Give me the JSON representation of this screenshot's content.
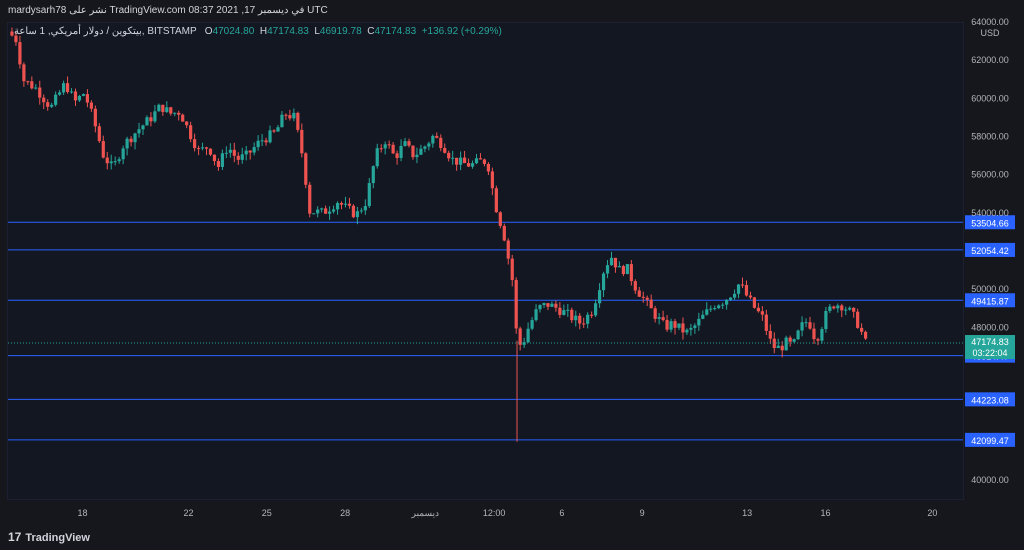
{
  "header": {
    "publish_line": "mardysarh78 نشر على TradingView.com في ديسمبر 17, 2021 08:37 UTC"
  },
  "legend": {
    "symbol": "بيتكوين / دولار أمريكي, 1 ساعة, BITSTAMP",
    "o_label": "O",
    "o_value": "47024.80",
    "h_label": "H",
    "h_value": "47174.83",
    "l_label": "L",
    "l_value": "46919.78",
    "c_label": "C",
    "c_value": "47174.83",
    "change": "+136.92 (+0.29%)"
  },
  "footer": {
    "brand": "TradingView",
    "brand_icon": "tradingview-logo-icon"
  },
  "colors": {
    "background": "#131722",
    "up": "#26a69a",
    "down": "#ef5350",
    "level_line": "#2962ff",
    "axis_text": "#b2b5be"
  },
  "chart_data": {
    "type": "candlestick",
    "title": "",
    "currency": "USD",
    "ylim": [
      39000,
      64000
    ],
    "y_ticks": [
      40000,
      48000,
      50000,
      54000,
      56000,
      58000,
      60000,
      62000,
      64000
    ],
    "y_tick_labels": [
      "40000.00",
      "48000.00",
      "50000.00",
      "54000.00",
      "56000.00",
      "58000.00",
      "60000.00",
      "62000.00",
      "64000.00"
    ],
    "x_ticks": [
      {
        "label": "18",
        "pos": 0.078
      },
      {
        "label": "22",
        "pos": 0.189
      },
      {
        "label": "25",
        "pos": 0.271
      },
      {
        "label": "28",
        "pos": 0.353
      },
      {
        "label": "ديسمبر",
        "pos": 0.437
      },
      {
        "label": "12:00",
        "pos": 0.509
      },
      {
        "label": "6",
        "pos": 0.58
      },
      {
        "label": "9",
        "pos": 0.664
      },
      {
        "label": "13",
        "pos": 0.774
      },
      {
        "label": "16",
        "pos": 0.856
      },
      {
        "label": "20",
        "pos": 0.968
      }
    ],
    "horizontal_levels": [
      53504.66,
      52054.42,
      49415.87,
      46514.47,
      44223.08,
      42099.47
    ],
    "last_price": 47174.83,
    "countdown": "03:22:04",
    "price_path": [
      [
        0.0,
        63500
      ],
      [
        0.01,
        63000
      ],
      [
        0.015,
        61000
      ],
      [
        0.03,
        60500
      ],
      [
        0.045,
        59500
      ],
      [
        0.06,
        60800
      ],
      [
        0.07,
        59800
      ],
      [
        0.08,
        60300
      ],
      [
        0.09,
        58800
      ],
      [
        0.1,
        57000
      ],
      [
        0.11,
        56300
      ],
      [
        0.12,
        57500
      ],
      [
        0.135,
        58300
      ],
      [
        0.15,
        59000
      ],
      [
        0.16,
        59600
      ],
      [
        0.17,
        59200
      ],
      [
        0.18,
        59300
      ],
      [
        0.19,
        58200
      ],
      [
        0.2,
        57200
      ],
      [
        0.21,
        57500
      ],
      [
        0.22,
        56400
      ],
      [
        0.23,
        57500
      ],
      [
        0.24,
        56800
      ],
      [
        0.25,
        57000
      ],
      [
        0.265,
        57800
      ],
      [
        0.28,
        58200
      ],
      [
        0.29,
        59200
      ],
      [
        0.3,
        59000
      ],
      [
        0.31,
        56600
      ],
      [
        0.315,
        54100
      ],
      [
        0.33,
        54000
      ],
      [
        0.345,
        54600
      ],
      [
        0.355,
        54200
      ],
      [
        0.365,
        53900
      ],
      [
        0.375,
        54600
      ],
      [
        0.385,
        57000
      ],
      [
        0.395,
        57800
      ],
      [
        0.405,
        56900
      ],
      [
        0.415,
        57600
      ],
      [
        0.425,
        57000
      ],
      [
        0.435,
        57400
      ],
      [
        0.445,
        58000
      ],
      [
        0.455,
        57600
      ],
      [
        0.465,
        56800
      ],
      [
        0.475,
        56600
      ],
      [
        0.485,
        56500
      ],
      [
        0.495,
        56700
      ],
      [
        0.502,
        56700
      ],
      [
        0.51,
        54500
      ],
      [
        0.52,
        52700
      ],
      [
        0.528,
        50500
      ],
      [
        0.533,
        47300
      ],
      [
        0.538,
        47000
      ],
      [
        0.545,
        48000
      ],
      [
        0.555,
        49000
      ],
      [
        0.565,
        49200
      ],
      [
        0.575,
        49000
      ],
      [
        0.585,
        48700
      ],
      [
        0.6,
        48200
      ],
      [
        0.612,
        48900
      ],
      [
        0.625,
        51200
      ],
      [
        0.632,
        51700
      ],
      [
        0.64,
        51000
      ],
      [
        0.648,
        51100
      ],
      [
        0.656,
        50200
      ],
      [
        0.664,
        49600
      ],
      [
        0.672,
        49000
      ],
      [
        0.68,
        48500
      ],
      [
        0.688,
        48000
      ],
      [
        0.696,
        48200
      ],
      [
        0.704,
        47900
      ],
      [
        0.712,
        47700
      ],
      [
        0.72,
        48100
      ],
      [
        0.73,
        48700
      ],
      [
        0.74,
        49200
      ],
      [
        0.75,
        49400
      ],
      [
        0.758,
        49800
      ],
      [
        0.766,
        50300
      ],
      [
        0.774,
        49600
      ],
      [
        0.782,
        49000
      ],
      [
        0.79,
        48500
      ],
      [
        0.8,
        47000
      ],
      [
        0.808,
        46900
      ],
      [
        0.815,
        47200
      ],
      [
        0.822,
        47000
      ],
      [
        0.83,
        48000
      ],
      [
        0.838,
        48400
      ],
      [
        0.846,
        47300
      ],
      [
        0.856,
        48600
      ],
      [
        0.864,
        49200
      ],
      [
        0.872,
        49200
      ],
      [
        0.88,
        48900
      ],
      [
        0.888,
        48400
      ],
      [
        0.894,
        47700
      ],
      [
        0.898,
        47175
      ]
    ]
  }
}
